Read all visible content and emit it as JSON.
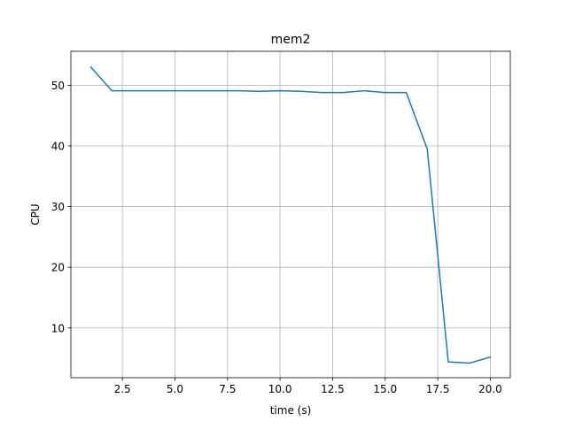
{
  "chart_data": {
    "type": "line",
    "title": "mem2",
    "xlabel": "time (s)",
    "ylabel": "CPU",
    "xlim": [
      0.05,
      20.95
    ],
    "ylim": [
      1.8,
      55.6
    ],
    "xticks": [
      2.5,
      5.0,
      7.5,
      10.0,
      12.5,
      15.0,
      17.5,
      20.0
    ],
    "xtick_labels": [
      "2.5",
      "5.0",
      "7.5",
      "10.0",
      "12.5",
      "15.0",
      "17.5",
      "20.0"
    ],
    "yticks": [
      10,
      20,
      30,
      40,
      50
    ],
    "ytick_labels": [
      "10",
      "20",
      "30",
      "40",
      "50"
    ],
    "grid": true,
    "colors": {
      "line": "#1f77b4",
      "grid": "#b0b0b0",
      "axes": "#000000"
    },
    "series": [
      {
        "x": [
          1,
          2,
          3,
          4,
          5,
          6,
          7,
          8,
          9,
          10,
          11,
          12,
          13,
          14,
          15,
          16,
          17,
          18,
          19,
          20
        ],
        "values": [
          53.0,
          49.1,
          49.1,
          49.1,
          49.1,
          49.1,
          49.1,
          49.1,
          49.0,
          49.1,
          49.0,
          48.8,
          48.8,
          49.1,
          48.8,
          48.8,
          39.5,
          4.4,
          4.2,
          5.2
        ]
      }
    ]
  }
}
